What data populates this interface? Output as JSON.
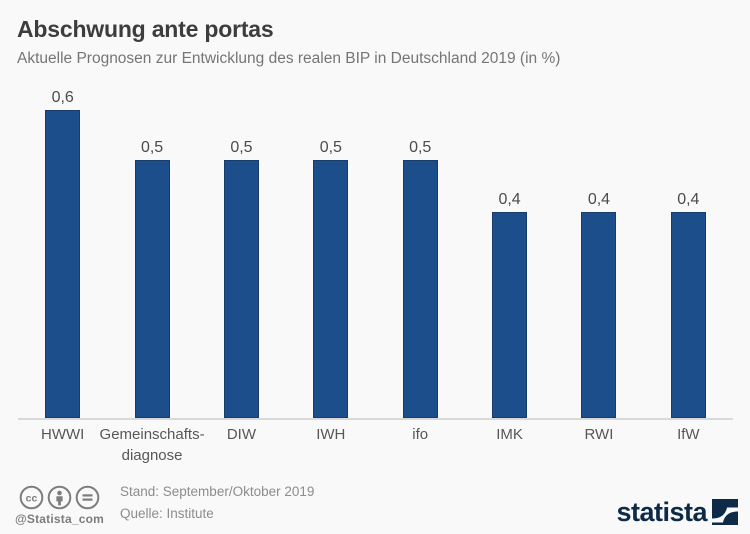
{
  "header": {
    "title": "Abschwung ante portas",
    "subtitle": "Aktuelle Prognosen zur Entwicklung des realen BIP in Deutschland 2019 (in %)"
  },
  "chart_data": {
    "type": "bar",
    "title": "Abschwung ante portas",
    "subtitle": "Aktuelle Prognosen zur Entwicklung des realen BIP in Deutschland 2019 (in %)",
    "categories": [
      "HWWI",
      "Gemeinschafts-\ndiagnose",
      "DIW",
      "IWH",
      "ifo",
      "IMK",
      "RWI",
      "IfW"
    ],
    "values": [
      0.6,
      0.5,
      0.5,
      0.5,
      0.5,
      0.4,
      0.4,
      0.4
    ],
    "value_labels": [
      "0,6",
      "0,5",
      "0,5",
      "0,5",
      "0,5",
      "0,4",
      "0,4",
      "0,4"
    ],
    "xlabel": "",
    "ylabel": "",
    "ylim": [
      0,
      0.6
    ],
    "grid": false,
    "legend": null,
    "bar_color": "#1d4e8c"
  },
  "footer": {
    "icons": [
      "cc-icon",
      "attribution-icon",
      "no-derivatives-icon"
    ],
    "license_handle": "@Statista_com",
    "stand": "Stand: September/Oktober 2019",
    "source": "Quelle: Institute",
    "brand": "statista"
  },
  "colors": {
    "background": "#f9f9f9",
    "bar": "#1d4e8c",
    "bar_border": "#173c6b",
    "title_text": "#3d3d3d",
    "subtitle_text": "#757575",
    "axis_line": "#d9d9d9",
    "footer_text": "#8c8c8c",
    "brand_navy": "#0d2a47"
  }
}
